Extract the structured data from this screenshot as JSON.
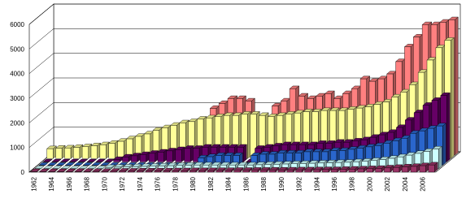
{
  "chart_data": {
    "type": "bar3d",
    "categories": [
      "1962",
      null,
      "1964",
      null,
      "1966",
      null,
      "1968",
      null,
      "1970",
      null,
      "1972",
      null,
      "1974",
      null,
      "1976",
      null,
      "1978",
      null,
      "1980",
      null,
      "1982",
      null,
      "1984",
      null,
      "1986",
      null,
      "1988",
      null,
      "1990",
      null,
      "1992",
      null,
      "1994",
      null,
      "1996",
      null,
      "1998",
      null,
      "2000",
      null,
      "2002",
      null,
      "2004",
      null,
      "2006",
      null
    ],
    "series": [
      {
        "color": "#993366",
        "values": [
          20,
          20,
          20,
          20,
          20,
          25,
          25,
          30,
          30,
          35,
          40,
          40,
          45,
          45,
          50,
          50,
          55,
          55,
          60,
          60,
          60,
          65,
          65,
          70,
          70,
          75,
          75,
          80,
          80,
          85,
          90,
          90,
          95,
          100,
          100,
          110,
          120,
          130,
          140,
          150,
          170,
          190,
          210,
          230,
          260,
          290
        ]
      },
      {
        "color": "#ccffff",
        "values": [
          0,
          0,
          0,
          0,
          0,
          0,
          0,
          0,
          50,
          60,
          70,
          80,
          90,
          100,
          110,
          120,
          130,
          140,
          150,
          150,
          150,
          150,
          150,
          150,
          150,
          160,
          170,
          180,
          190,
          200,
          210,
          220,
          230,
          240,
          250,
          260,
          280,
          300,
          330,
          370,
          420,
          480,
          550,
          620,
          700,
          800
        ]
      },
      {
        "color": "#2a66cc",
        "values": [
          0,
          0,
          0,
          0,
          0,
          0,
          0,
          0,
          0,
          0,
          0,
          0,
          0,
          0,
          0,
          0,
          0,
          0,
          300,
          350,
          400,
          400,
          400,
          0,
          400,
          450,
          450,
          500,
          500,
          500,
          550,
          550,
          550,
          600,
          600,
          650,
          700,
          750,
          800,
          900,
          1000,
          1100,
          1300,
          1400,
          1500,
          1600
        ]
      },
      {
        "color": "#660066",
        "values": [
          0,
          0,
          0,
          0,
          0,
          0,
          0,
          0,
          100,
          200,
          250,
          300,
          350,
          400,
          450,
          500,
          550,
          550,
          600,
          600,
          600,
          600,
          600,
          0,
          550,
          600,
          650,
          700,
          700,
          700,
          700,
          750,
          750,
          800,
          800,
          850,
          900,
          1000,
          1100,
          1200,
          1400,
          1700,
          2000,
          2300,
          2500,
          2700
        ]
      },
      {
        "color": "#ffff99",
        "values": [
          400,
          420,
          430,
          450,
          480,
          520,
          560,
          620,
          700,
          800,
          900,
          1000,
          1150,
          1250,
          1350,
          1450,
          1500,
          1600,
          1650,
          1700,
          1750,
          1750,
          1800,
          1800,
          1750,
          1700,
          1750,
          1800,
          1850,
          1900,
          1900,
          1950,
          1950,
          1950,
          2000,
          2050,
          2100,
          2200,
          2300,
          2500,
          2700,
          3000,
          3500,
          4000,
          4500,
          4800
        ]
      },
      {
        "color": "#ff8080",
        "values": [
          0,
          0,
          0,
          0,
          0,
          0,
          0,
          0,
          0,
          0,
          0,
          0,
          0,
          0,
          0,
          0,
          0,
          0,
          1900,
          2100,
          2300,
          2300,
          2200,
          0,
          0,
          2000,
          2200,
          2700,
          2400,
          2300,
          2400,
          2500,
          2300,
          2500,
          2700,
          3100,
          3000,
          3100,
          3300,
          3800,
          4400,
          4800,
          5300,
          5300,
          5400,
          5500
        ]
      }
    ],
    "ylim": [
      0,
      6000
    ],
    "yticks": [
      0,
      1000,
      2000,
      3000,
      4000,
      5000,
      6000
    ],
    "grid": true
  }
}
